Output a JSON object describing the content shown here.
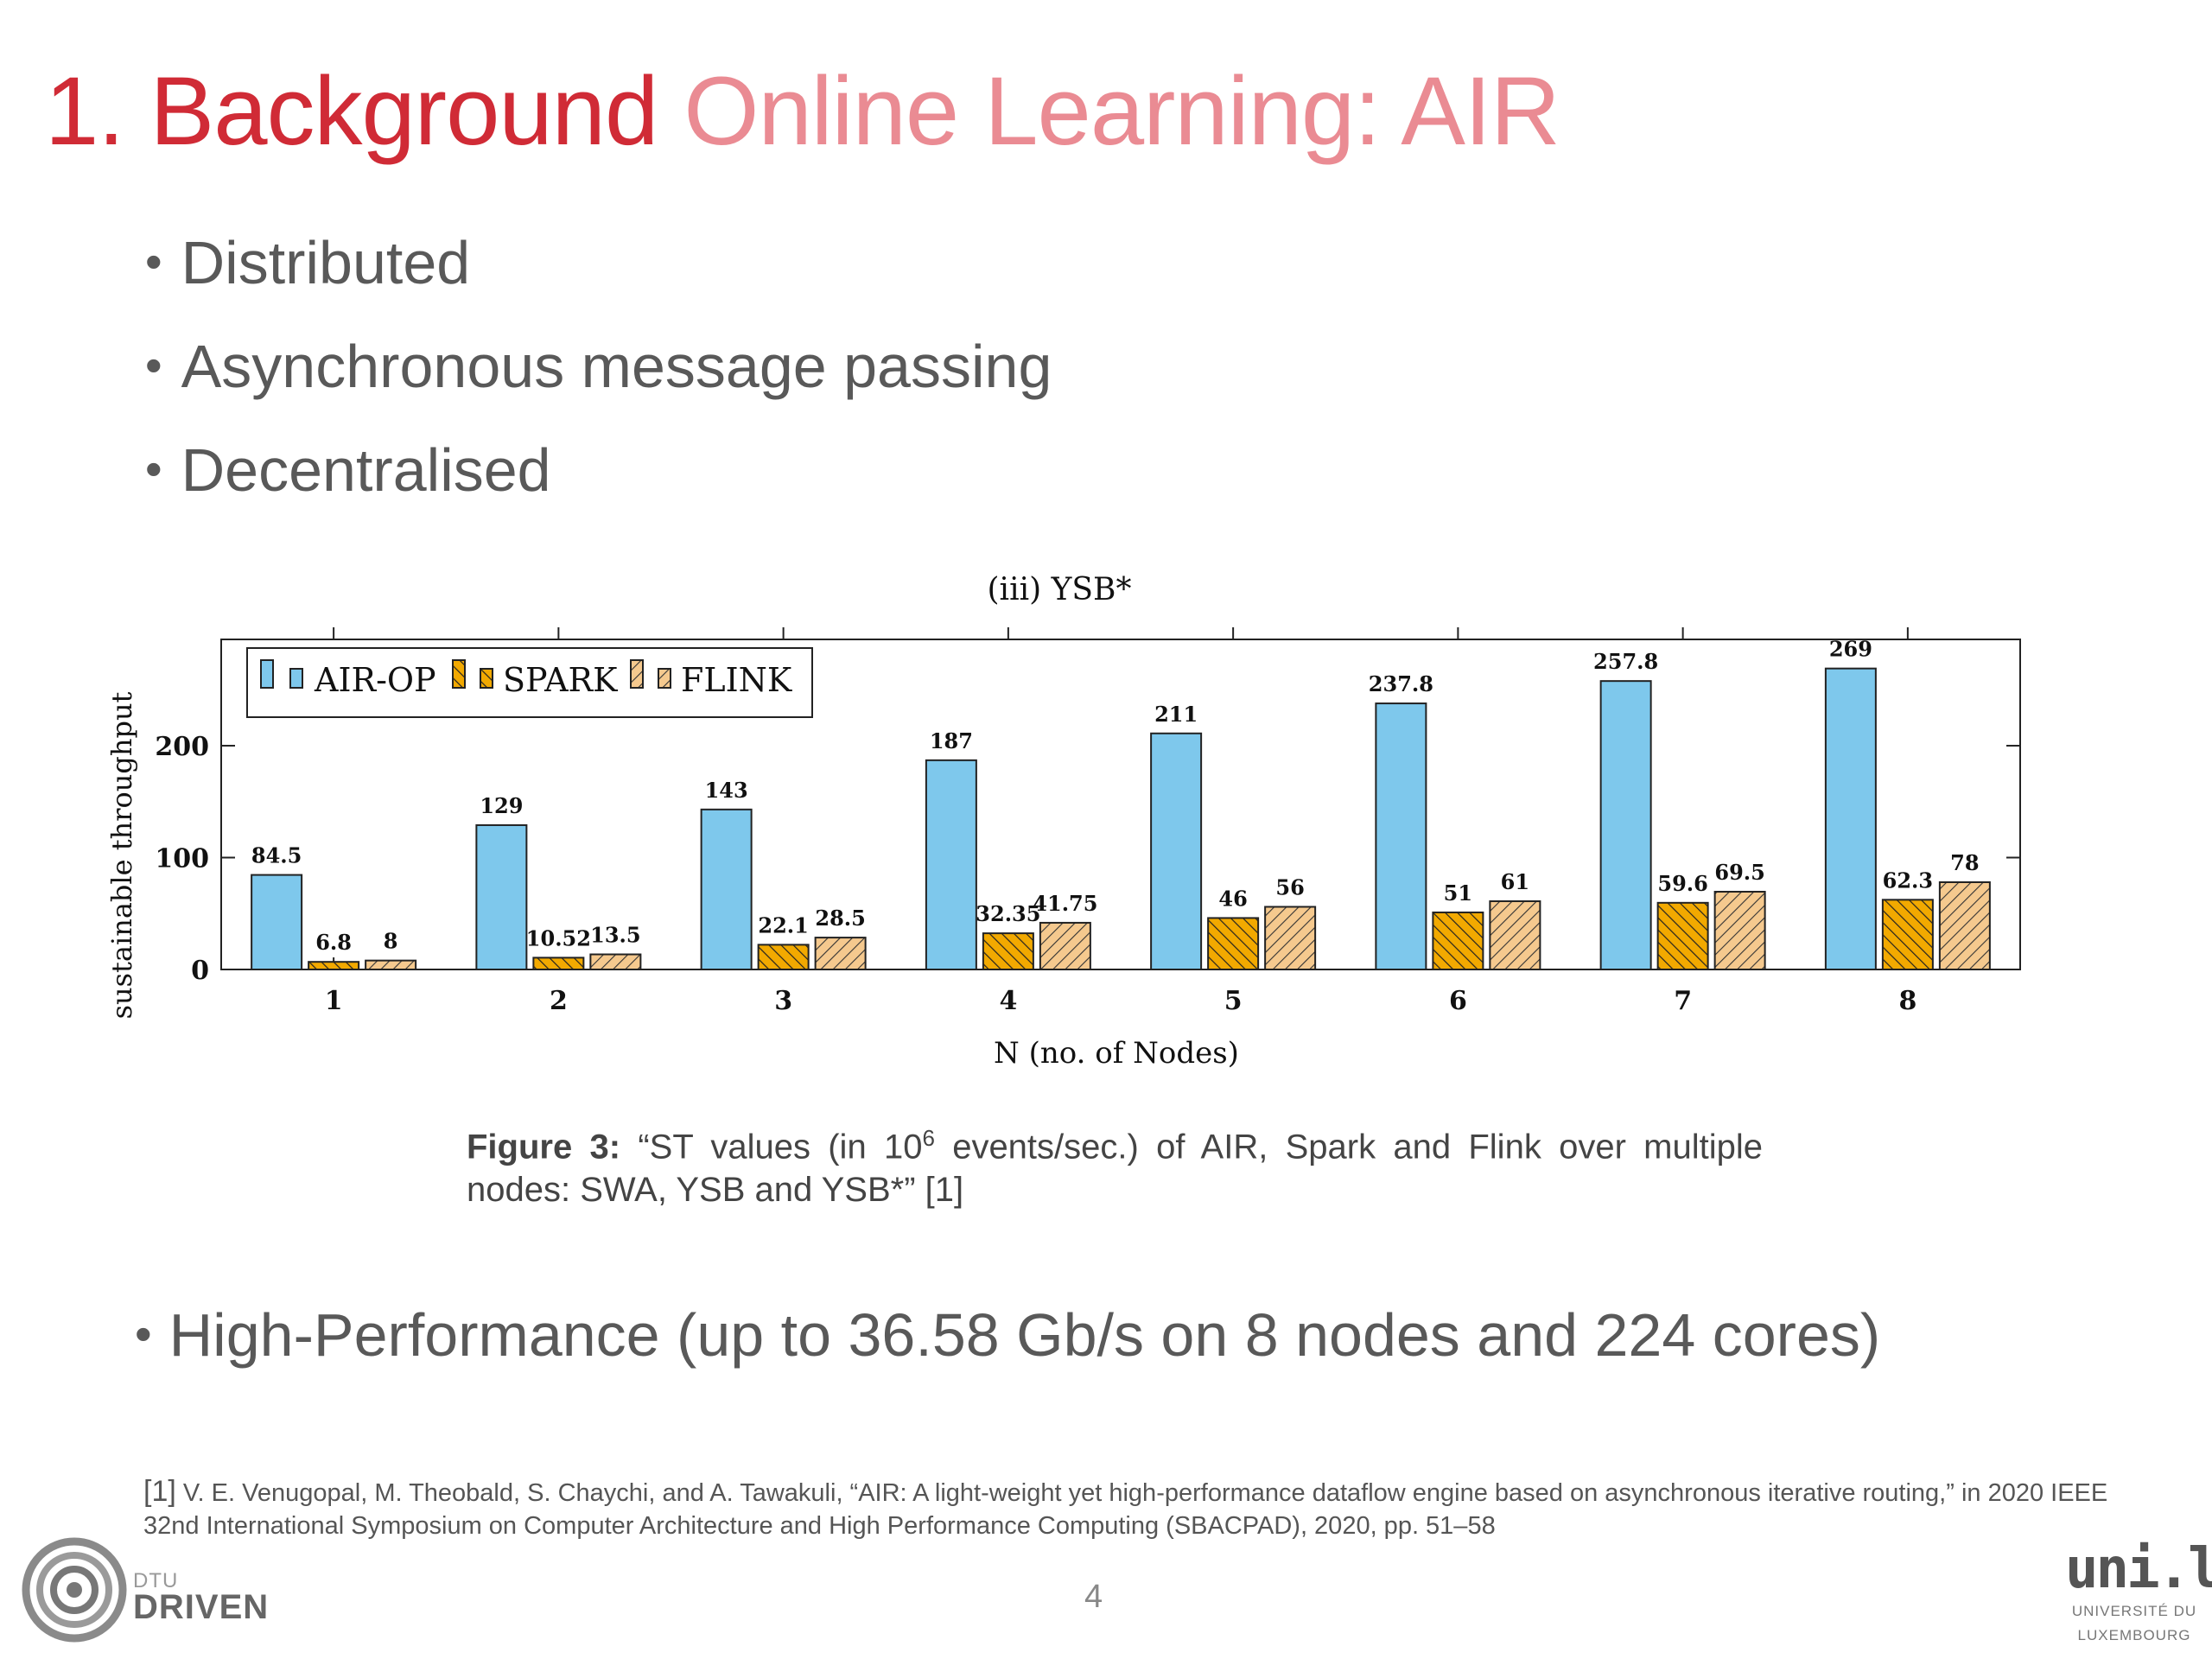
{
  "slide": {
    "title_part1": "1. Background",
    "title_part2": "Online Learning: AIR",
    "bullets": [
      "Distributed",
      "Asynchronous message passing",
      "Decentralised"
    ],
    "bottom_bullet": "High-Performance (up to 36.58 Gb/s on 8 nodes and 224 cores)",
    "caption_label": "Figure 3:",
    "caption_text_before_sup": "“ST values (in 10",
    "caption_sup": "6",
    "caption_text_after_sup": " events/sec.) of AIR, Spark and Flink over multiple nodes: SWA, YSB and YSB*” [1]",
    "reference_num": "[1]",
    "reference_text": "V. E. Venugopal, M. Theobald, S. Chaychi, and A. Tawakuli, “AIR: A light-weight yet high-performance dataflow engine based on asynchronous iterative routing,” in 2020 IEEE 32nd International Symposium on Computer Architecture and High Performance Computing (SBACPAD), 2020, pp. 51–58",
    "page_number": "4",
    "logo_left_top": "DTU",
    "logo_left_bottom": "DRIVEN",
    "logo_right_main": "uni.lu",
    "logo_right_line1": "UNIVERSITÉ DU",
    "logo_right_line2": "LUXEMBOURG"
  },
  "chart_data": {
    "type": "bar",
    "title": "(iii) YSB*",
    "xlabel": "N (no. of Nodes)",
    "ylabel": "sustainable throughput",
    "categories": [
      "1",
      "2",
      "3",
      "4",
      "5",
      "6",
      "7",
      "8"
    ],
    "series": [
      {
        "name": "AIR-OP",
        "values": [
          84.5,
          129,
          143,
          187,
          211,
          237.8,
          257.8,
          269
        ],
        "labels": [
          "84.5",
          "129",
          "143",
          "187",
          "211",
          "237.8",
          "257.8",
          "269"
        ],
        "color": "#7ec8ec"
      },
      {
        "name": "SPARK",
        "values": [
          6.8,
          10.52,
          22.1,
          32.35,
          46,
          51,
          59.6,
          62.3
        ],
        "labels": [
          "6.8",
          "10.52",
          "22.1",
          "32.35",
          "46",
          "51",
          "59.6",
          "62.3"
        ],
        "color": "#f2a900"
      },
      {
        "name": "FLINK",
        "values": [
          8,
          13.5,
          28.5,
          41.75,
          56,
          61,
          69.5,
          78
        ],
        "labels": [
          "8",
          "13.5",
          "28.5",
          "41.75",
          "56",
          "61",
          "69.5",
          "78"
        ],
        "color": "#f5c98e"
      }
    ],
    "yticks": [
      "0",
      "100",
      "200"
    ],
    "ylim": [
      0,
      295
    ],
    "legend_position": "top-left",
    "grid": false
  }
}
